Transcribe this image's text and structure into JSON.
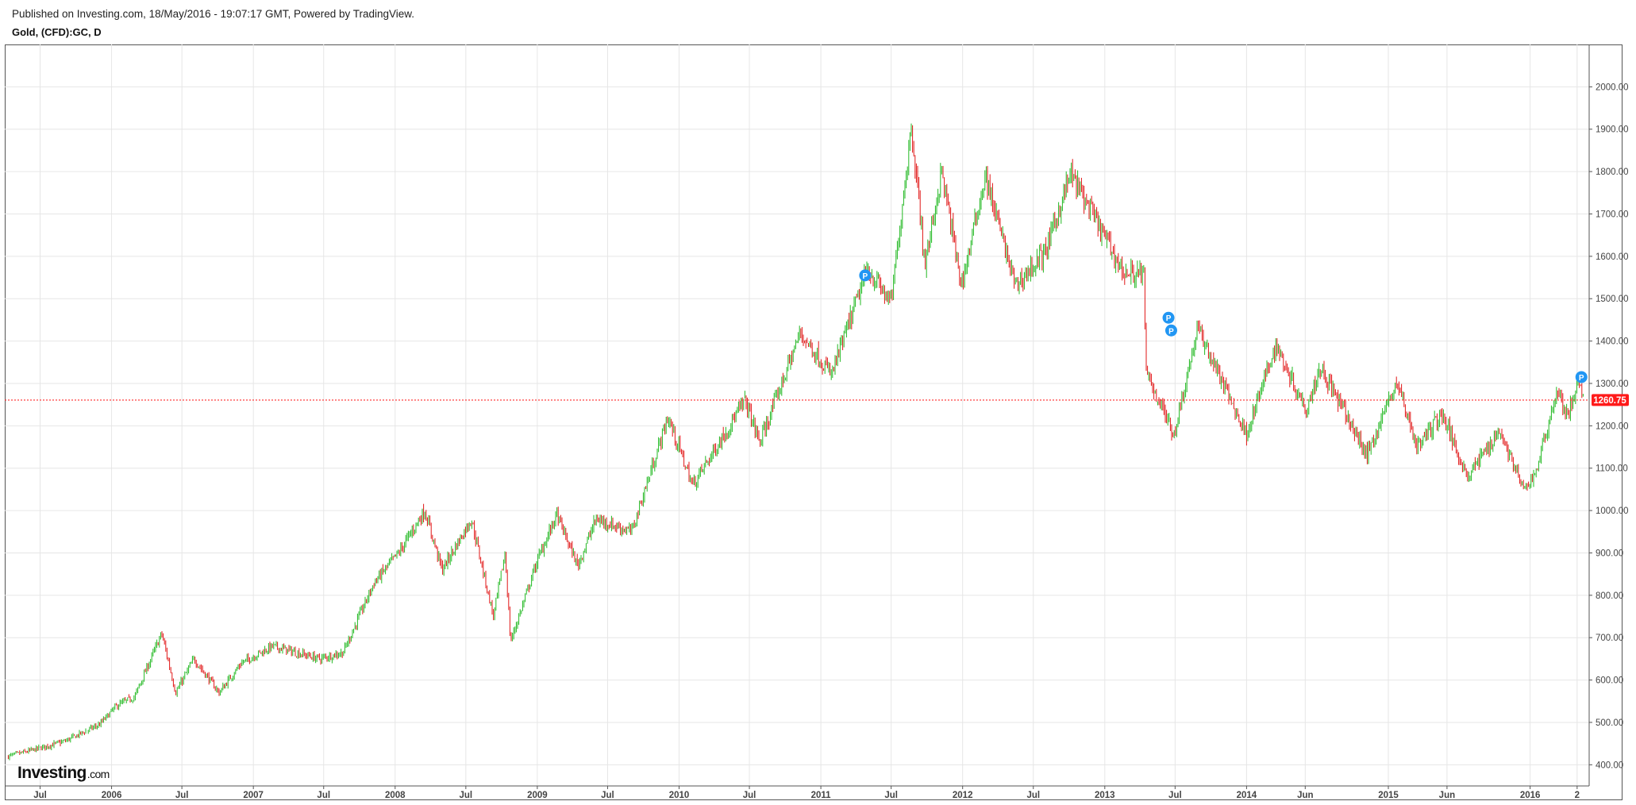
{
  "header": {
    "published": "Published on Investing.com, 18/May/2016 - 19:07:17 GMT, Powered by TradingView.",
    "symbol": "Gold, (CFD):GC, D"
  },
  "logo": {
    "main": "Investing",
    "suffix": ".com"
  },
  "colors": {
    "up": "#22b822",
    "down": "#e01515",
    "grid": "#e6e6e6",
    "price_line": "#ff2a2a",
    "price_badge": "#ff1a1a",
    "marker": "#2196f3"
  },
  "chart_data": {
    "type": "candlestick",
    "title": "Gold, (CFD):GC, D",
    "x_range": [
      "2005-04",
      "2016-06"
    ],
    "ylim": [
      350,
      2100
    ],
    "y_ticks": [
      400,
      500,
      600,
      700,
      800,
      900,
      1000,
      1100,
      1200,
      1300,
      1400,
      1500,
      1600,
      1700,
      1800,
      1900,
      2000
    ],
    "y_tick_labels": [
      "400.00",
      "500.00",
      "600.00",
      "700.00",
      "800.00",
      "900.00",
      "1000.00",
      "1100.00",
      "1200.00",
      "1300.00",
      "1400.00",
      "1500.00",
      "1600.00",
      "1700.00",
      "1800.00",
      "1900.00",
      "2000.00"
    ],
    "x_ticks": [
      {
        "label": "Jul",
        "date": "2005-07"
      },
      {
        "label": "2006",
        "date": "2006-01"
      },
      {
        "label": "Jul",
        "date": "2006-07"
      },
      {
        "label": "2007",
        "date": "2007-01"
      },
      {
        "label": "Jul",
        "date": "2007-07"
      },
      {
        "label": "2008",
        "date": "2008-01"
      },
      {
        "label": "Jul",
        "date": "2008-07"
      },
      {
        "label": "2009",
        "date": "2009-01"
      },
      {
        "label": "Jul",
        "date": "2009-07"
      },
      {
        "label": "2010",
        "date": "2010-01"
      },
      {
        "label": "Jul",
        "date": "2010-07"
      },
      {
        "label": "2011",
        "date": "2011-01"
      },
      {
        "label": "Jul",
        "date": "2011-07"
      },
      {
        "label": "2012",
        "date": "2012-01"
      },
      {
        "label": "Jul",
        "date": "2012-07"
      },
      {
        "label": "2013",
        "date": "2013-01"
      },
      {
        "label": "Jul",
        "date": "2013-07"
      },
      {
        "label": "2014",
        "date": "2014-01"
      },
      {
        "label": "Jun",
        "date": "2014-06"
      },
      {
        "label": "2015",
        "date": "2015-01"
      },
      {
        "label": "Jun",
        "date": "2015-06"
      },
      {
        "label": "2016",
        "date": "2016-01"
      },
      {
        "label": "2",
        "date": "2016-05"
      }
    ],
    "last_price": 1260.75,
    "last_price_label": "1260.75",
    "grid": true,
    "close_path": [
      {
        "date": "2005-04-10",
        "value": 420
      },
      {
        "date": "2005-06-01",
        "value": 432
      },
      {
        "date": "2005-09-01",
        "value": 455
      },
      {
        "date": "2005-12-01",
        "value": 495
      },
      {
        "date": "2006-01-15",
        "value": 540
      },
      {
        "date": "2006-03-01",
        "value": 560
      },
      {
        "date": "2006-05-10",
        "value": 710
      },
      {
        "date": "2006-06-15",
        "value": 570
      },
      {
        "date": "2006-08-01",
        "value": 650
      },
      {
        "date": "2006-10-05",
        "value": 570
      },
      {
        "date": "2006-12-01",
        "value": 640
      },
      {
        "date": "2007-02-20",
        "value": 680
      },
      {
        "date": "2007-06-20",
        "value": 650
      },
      {
        "date": "2007-08-20",
        "value": 665
      },
      {
        "date": "2007-11-08",
        "value": 830
      },
      {
        "date": "2008-01-10",
        "value": 900
      },
      {
        "date": "2008-03-17",
        "value": 1000
      },
      {
        "date": "2008-05-01",
        "value": 860
      },
      {
        "date": "2008-07-15",
        "value": 980
      },
      {
        "date": "2008-09-10",
        "value": 750
      },
      {
        "date": "2008-10-10",
        "value": 900
      },
      {
        "date": "2008-10-24",
        "value": 690
      },
      {
        "date": "2008-12-31",
        "value": 880
      },
      {
        "date": "2009-02-20",
        "value": 990
      },
      {
        "date": "2009-04-15",
        "value": 870
      },
      {
        "date": "2009-06-01",
        "value": 980
      },
      {
        "date": "2009-09-01",
        "value": 950
      },
      {
        "date": "2009-12-03",
        "value": 1220
      },
      {
        "date": "2010-02-05",
        "value": 1060
      },
      {
        "date": "2010-06-20",
        "value": 1260
      },
      {
        "date": "2010-07-28",
        "value": 1160
      },
      {
        "date": "2010-11-09",
        "value": 1420
      },
      {
        "date": "2011-01-28",
        "value": 1320
      },
      {
        "date": "2011-05-01",
        "value": 1570
      },
      {
        "date": "2011-07-01",
        "value": 1490
      },
      {
        "date": "2011-08-22",
        "value": 1910
      },
      {
        "date": "2011-09-26",
        "value": 1580
      },
      {
        "date": "2011-11-08",
        "value": 1800
      },
      {
        "date": "2011-12-29",
        "value": 1530
      },
      {
        "date": "2012-02-28",
        "value": 1790
      },
      {
        "date": "2012-05-16",
        "value": 1530
      },
      {
        "date": "2012-08-01",
        "value": 1610
      },
      {
        "date": "2012-10-05",
        "value": 1795
      },
      {
        "date": "2013-02-20",
        "value": 1560
      },
      {
        "date": "2013-04-12",
        "value": 1560
      },
      {
        "date": "2013-04-16",
        "value": 1330
      },
      {
        "date": "2013-06-28",
        "value": 1180
      },
      {
        "date": "2013-08-28",
        "value": 1430
      },
      {
        "date": "2013-12-31",
        "value": 1180
      },
      {
        "date": "2014-03-17",
        "value": 1390
      },
      {
        "date": "2014-06-03",
        "value": 1240
      },
      {
        "date": "2014-07-10",
        "value": 1340
      },
      {
        "date": "2014-11-07",
        "value": 1130
      },
      {
        "date": "2015-01-22",
        "value": 1305
      },
      {
        "date": "2015-03-17",
        "value": 1150
      },
      {
        "date": "2015-05-18",
        "value": 1230
      },
      {
        "date": "2015-07-24",
        "value": 1080
      },
      {
        "date": "2015-10-14",
        "value": 1190
      },
      {
        "date": "2015-12-17",
        "value": 1045
      },
      {
        "date": "2016-01-15",
        "value": 1090
      },
      {
        "date": "2016-03-11",
        "value": 1285
      },
      {
        "date": "2016-04-05",
        "value": 1220
      },
      {
        "date": "2016-05-02",
        "value": 1300
      },
      {
        "date": "2016-05-18",
        "value": 1260
      }
    ],
    "markers": [
      {
        "label": "P",
        "date": "2011-04-25",
        "value": 1555
      },
      {
        "label": "P",
        "date": "2013-06-14",
        "value": 1455
      },
      {
        "label": "P",
        "date": "2013-06-21",
        "value": 1425
      },
      {
        "label": "P",
        "date": "2016-05-12",
        "value": 1315
      }
    ]
  }
}
